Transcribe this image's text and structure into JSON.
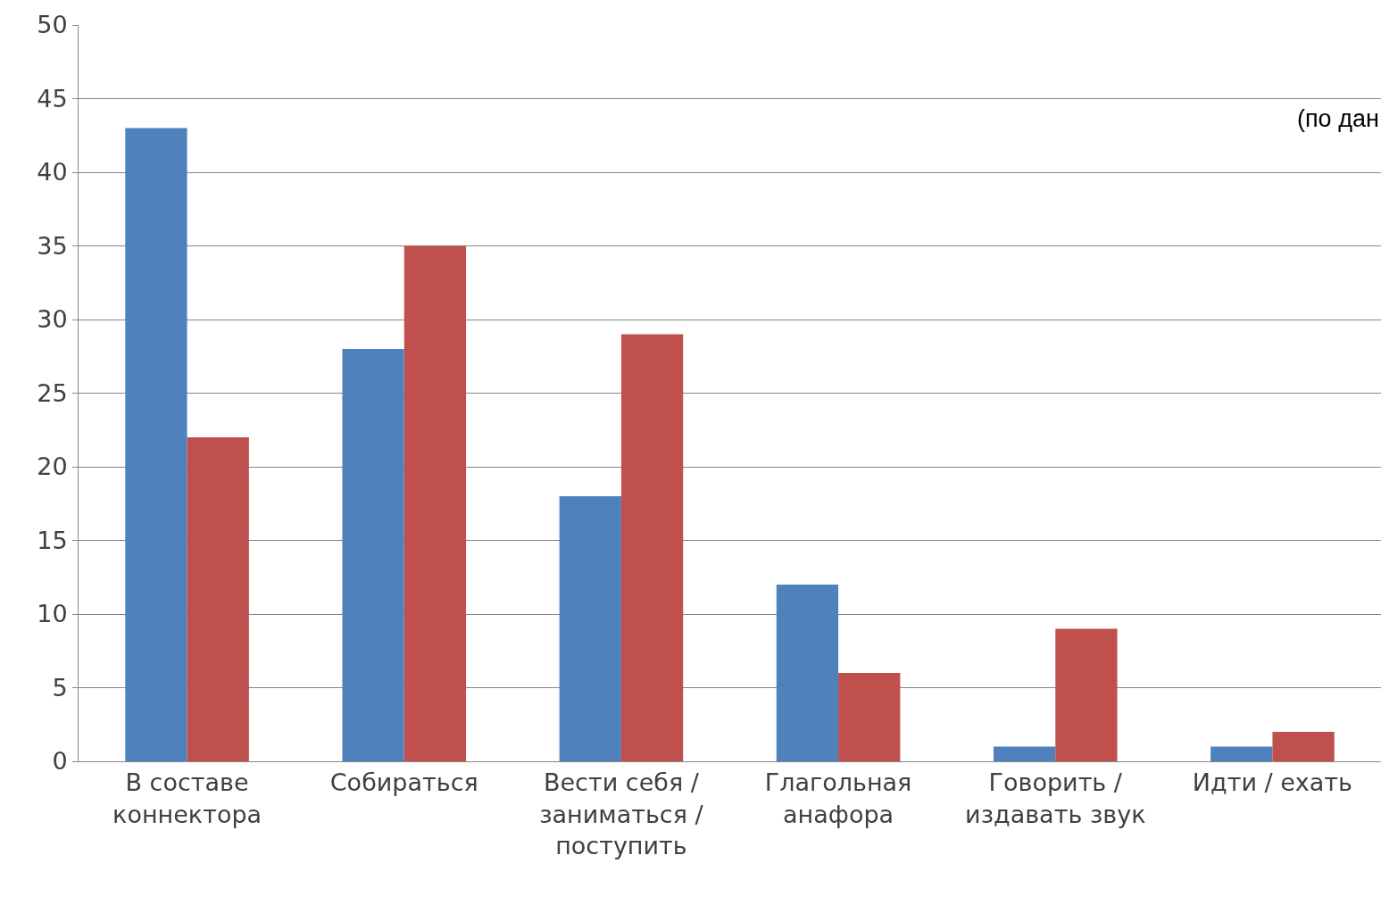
{
  "chart_data": {
    "type": "bar",
    "categories": [
      "В составе\nконнектора",
      "Собираться",
      "Вести себя /\nзаниматься /\nпоступить",
      "Глагольная\nанафора",
      "Говорить /\nиздавать звук",
      "Идти / ехать"
    ],
    "series": [
      {
        "color": "#4f81bd",
        "values": [
          43,
          28,
          18,
          12,
          1,
          1
        ]
      },
      {
        "color": "#c0504d",
        "values": [
          22,
          35,
          29,
          6,
          9,
          2
        ]
      }
    ],
    "ylim": [
      0,
      50
    ],
    "yticks": [
      0,
      5,
      10,
      15,
      20,
      25,
      30,
      35,
      40,
      45,
      50
    ],
    "grid": "y",
    "annotations": [
      "(по дан"
    ]
  }
}
